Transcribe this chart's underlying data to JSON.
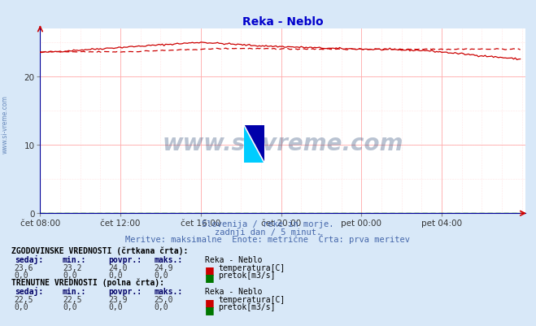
{
  "title": "Reka - Neblo",
  "title_color": "#0000cc",
  "background_color": "#d8e8f8",
  "plot_bg_color": "#ffffff",
  "grid_color_major": "#ffaaaa",
  "grid_color_minor": "#ffcccc",
  "xlabel_ticks": [
    "čet 08:00",
    "čet 12:00",
    "čet 16:00",
    "čet 20:00",
    "pet 00:00",
    "pet 04:00"
  ],
  "yticks": [
    0,
    10,
    20
  ],
  "ylim": [
    0,
    27
  ],
  "xlim": [
    0,
    290
  ],
  "tick_positions": [
    0,
    48,
    96,
    144,
    192,
    240
  ],
  "watermark_text": "www.si-vreme.com",
  "watermark_color": "#1a3a6a",
  "watermark_alpha": 0.3,
  "subtitle1": "Slovenija / reke in morje.",
  "subtitle2": "zadnji dan / 5 minut.",
  "subtitle3": "Meritve: maksimalne  Enote: metrične  Črta: prva meritev",
  "subtitle_color": "#4466aa",
  "axis_color": "#000099",
  "red_color": "#cc0000",
  "green_color": "#007700",
  "legend_title_hist": "ZGODOVINSKE VREDNOSTI (črtkana črta):",
  "legend_title_curr": "TRENUTNE VREDNOSTI (polna črta):",
  "legend_header_cols": [
    "sedaj:",
    "min.:",
    "povpr.:",
    "maks.:",
    "Reka - Neblo"
  ],
  "hist_temp_vals": [
    23.6,
    23.2,
    24.0,
    24.9
  ],
  "hist_flow_vals": [
    0.0,
    0.0,
    0.0,
    0.0
  ],
  "curr_temp_vals": [
    22.5,
    22.5,
    23.9,
    25.0
  ],
  "curr_flow_vals": [
    0.0,
    0.0,
    0.0,
    0.0
  ],
  "temp_label": "temperatura[C]",
  "flow_label": "pretok[m3/s]",
  "n_points": 288,
  "left_margin_color": "#6688bb"
}
